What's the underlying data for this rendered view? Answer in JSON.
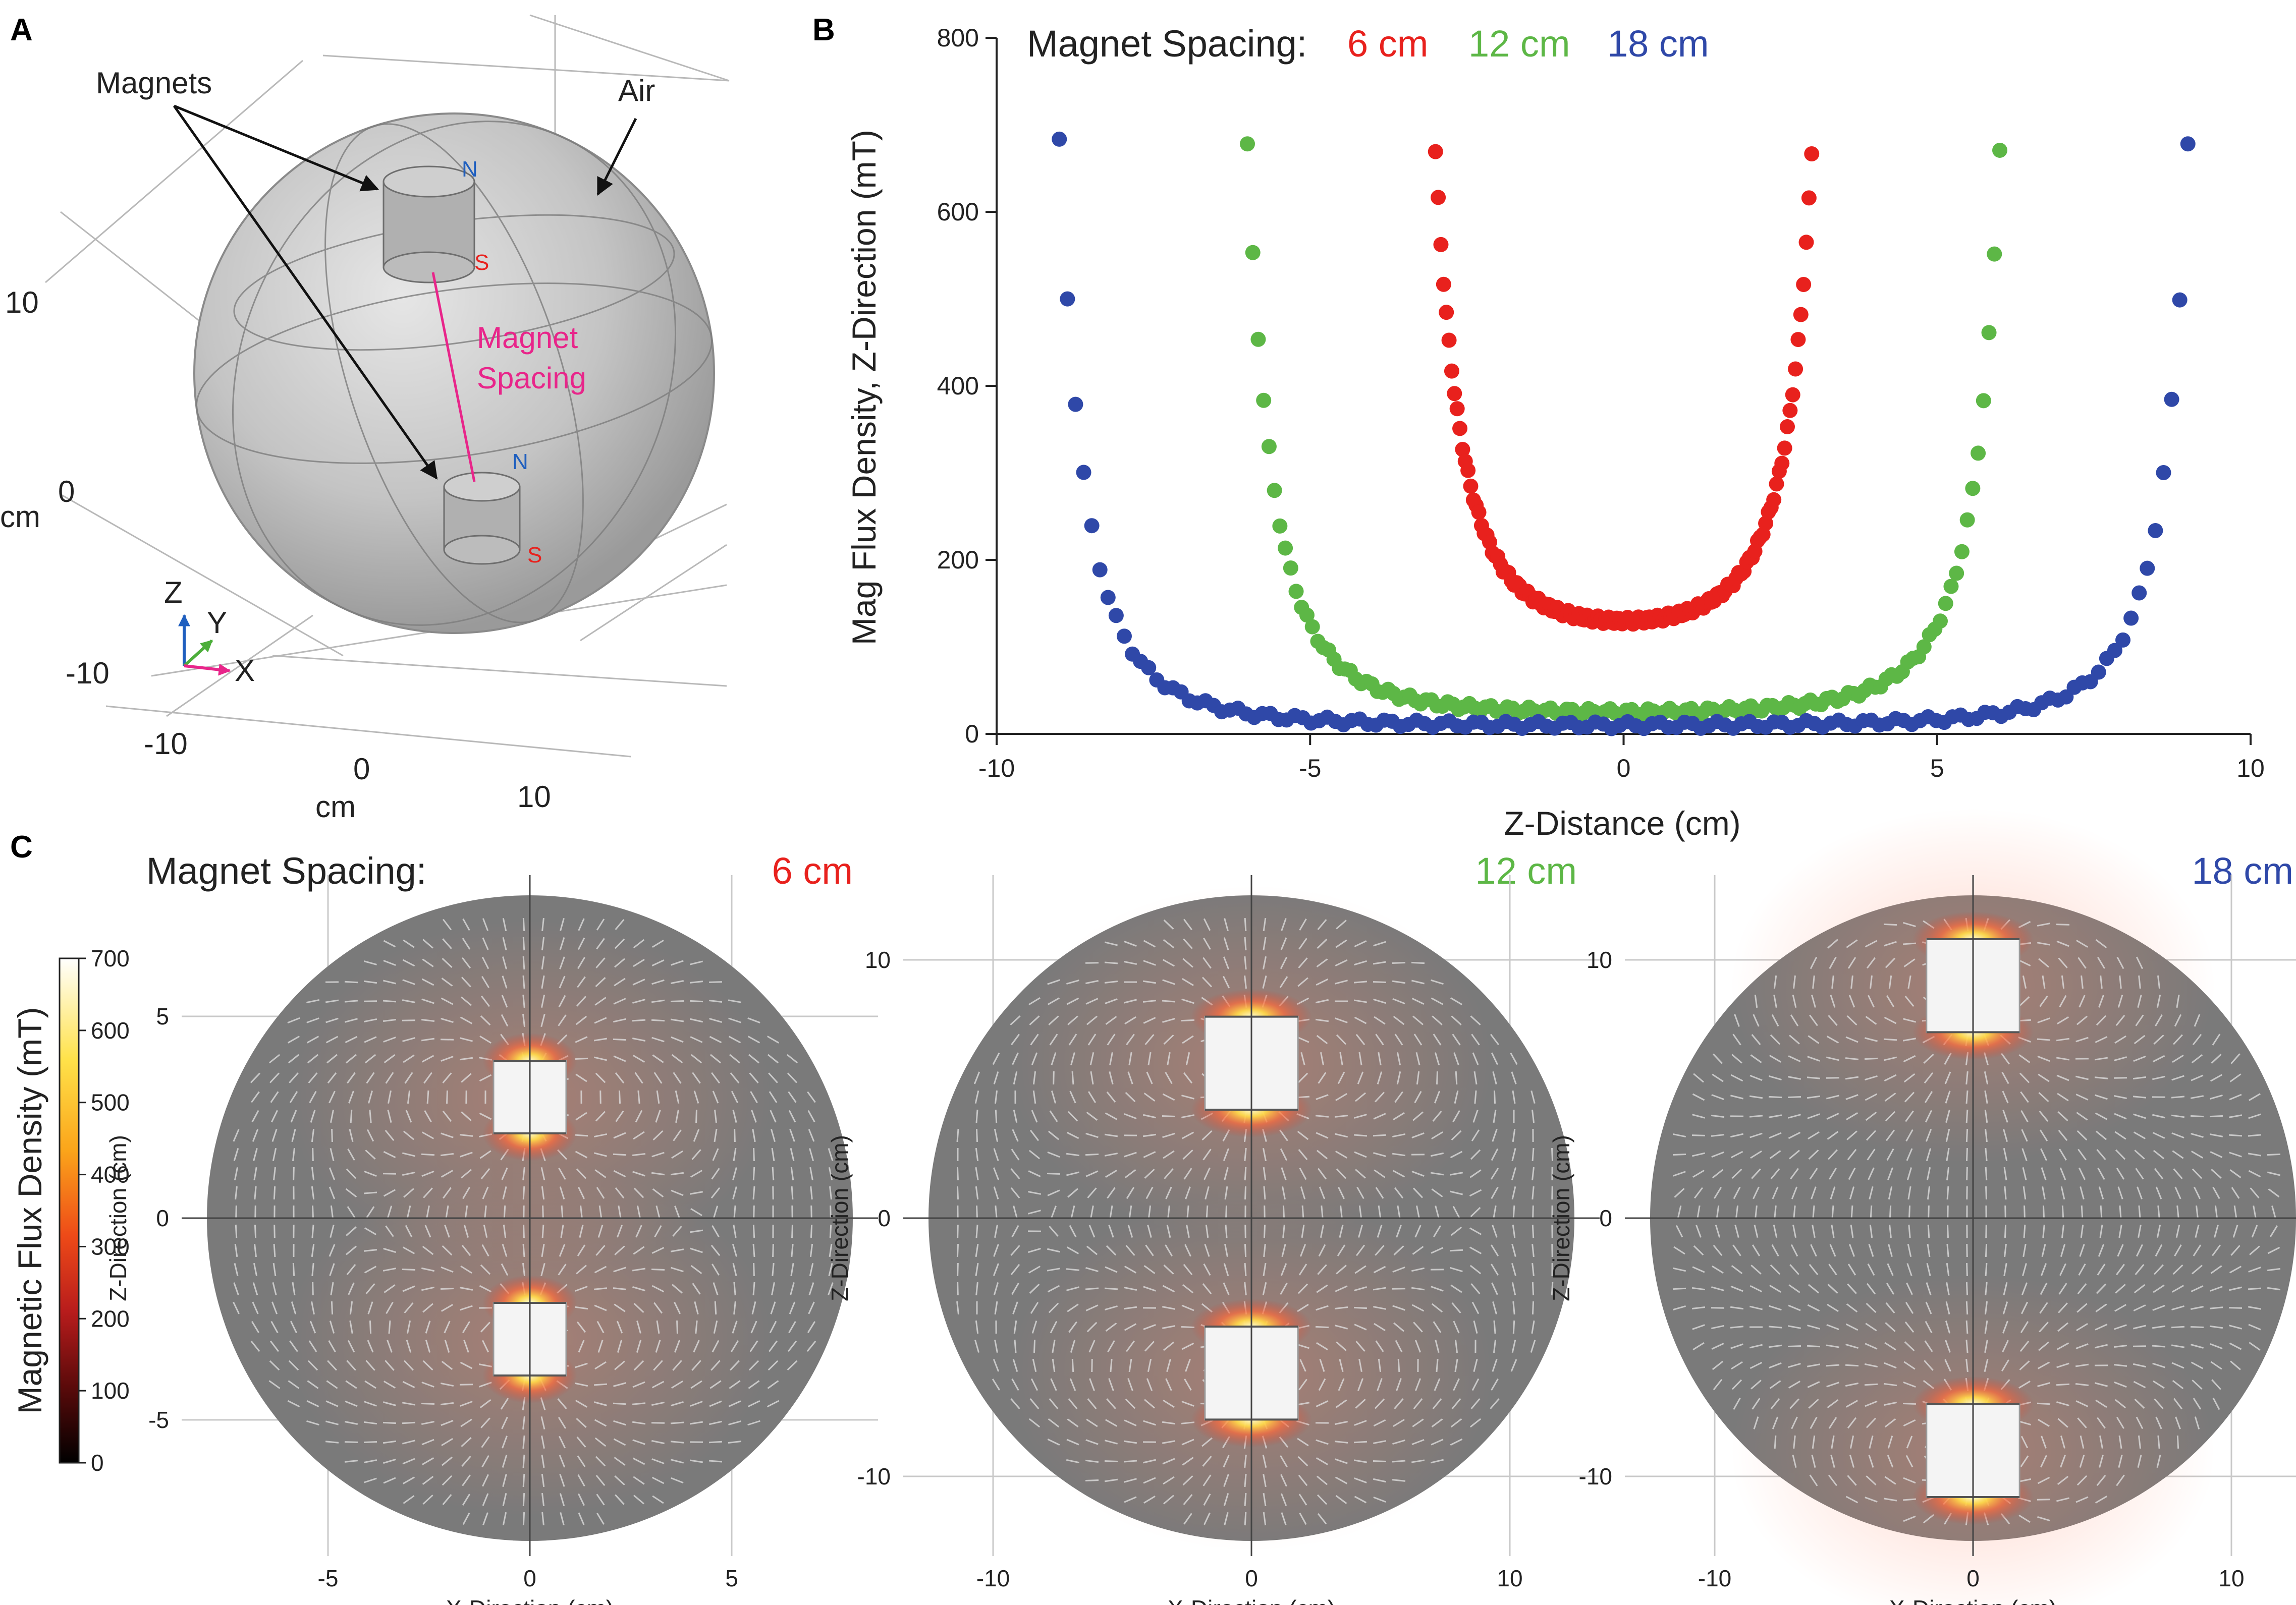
{
  "panels": {
    "a": "A",
    "b": "B",
    "c": "C"
  },
  "panel_a": {
    "magnets_label": "Magnets",
    "air_label": "Air",
    "spacing_label_line1": "Magnet",
    "spacing_label_line2": "Spacing",
    "pole_n": "N",
    "pole_s": "S",
    "axis_z": "Z",
    "axis_y": "Y",
    "axis_x": "X",
    "unit": "cm",
    "ticks_vertical": [
      "10",
      "0",
      "-10"
    ],
    "ticks_bottom": [
      "-10",
      "0",
      "10"
    ]
  },
  "chart_data": [
    {
      "type": "scatter",
      "title": "",
      "xlabel": "Z-Distance (cm)",
      "ylabel": "Mag Flux Density, Z-Direction (mT)",
      "xlim": [
        -10,
        10
      ],
      "ylim": [
        0,
        800
      ],
      "xticks": [
        "-10",
        "-5",
        "0",
        "5",
        "10"
      ],
      "yticks": [
        "0",
        "200",
        "400",
        "600",
        "800"
      ],
      "legend_title": "Magnet Spacing:",
      "legend_position": "top",
      "series": [
        {
          "name": "6 cm",
          "color": "#e8211d",
          "half_spacing": 3,
          "min_value": 130,
          "max_value": 665
        },
        {
          "name": "12 cm",
          "color": "#5db746",
          "half_spacing": 6,
          "min_value": 25,
          "max_value": 665
        },
        {
          "name": "18 cm",
          "color": "#2f48a8",
          "half_spacing": 9,
          "min_value": 10,
          "max_value": 665
        }
      ]
    }
  ],
  "panel_c": {
    "legend_title": "Magnet Spacing:",
    "colorbar_label": "Magnetic Flux Density (mT)",
    "colorbar_ticks": [
      "700",
      "600",
      "500",
      "400",
      "300",
      "200",
      "100",
      "0"
    ],
    "xlabel": "X-Direction (cm)",
    "ylabel": "Z-Direction (cm)",
    "maps": [
      {
        "name": "6 cm",
        "color": "#e8211d",
        "xticks": [
          "-5",
          "0",
          "5"
        ],
        "zticks": [
          "5",
          "0",
          "-5"
        ]
      },
      {
        "name": "12 cm",
        "color": "#5db746",
        "xticks": [
          "-10",
          "0",
          "10"
        ],
        "zticks": [
          "10",
          "0",
          "-10"
        ]
      },
      {
        "name": "18 cm",
        "color": "#2f48a8",
        "xticks": [
          "-10",
          "0",
          "10"
        ],
        "zticks": [
          "10",
          "0",
          "-10"
        ]
      }
    ]
  },
  "colors": {
    "red": "#e8211d",
    "green": "#5db746",
    "blue": "#2f48a8",
    "magenta": "#e8258a",
    "sphere": "#bdbdbd",
    "field_gray": "#7a7a7a"
  }
}
